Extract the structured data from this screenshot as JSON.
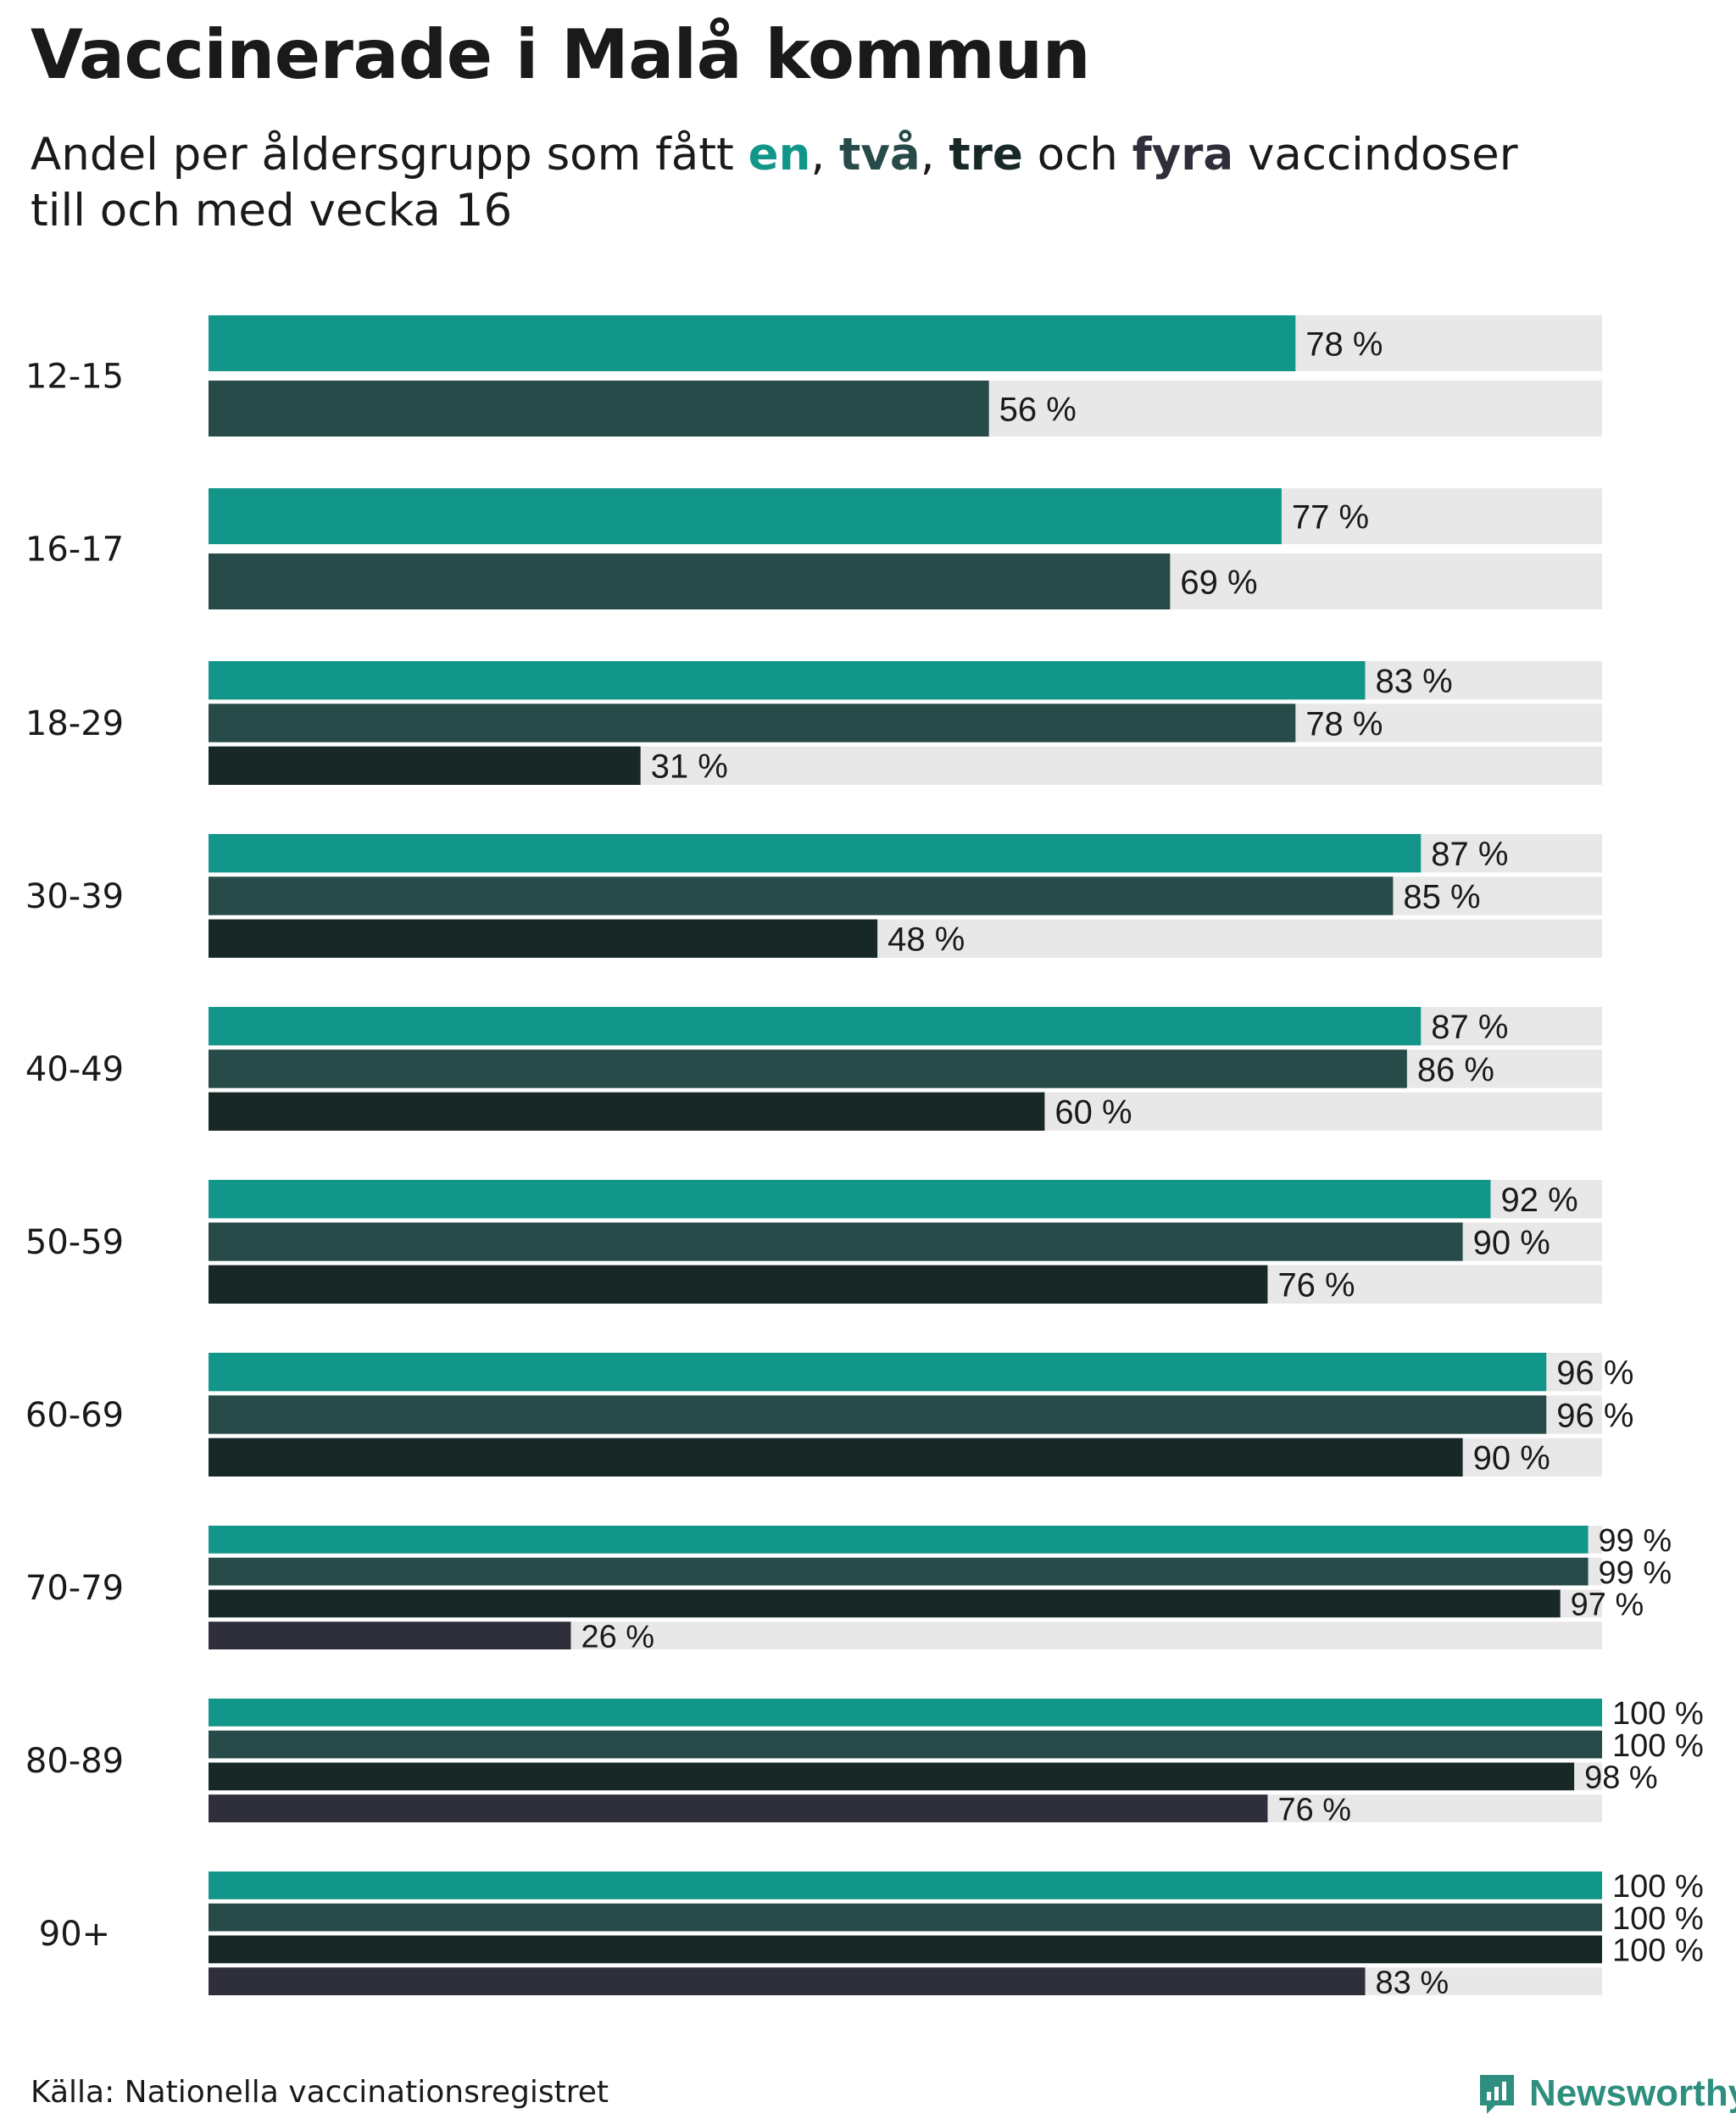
{
  "title": "Vaccinerade i Malå kommun",
  "subtitle": {
    "prefix": "Andel per åldersgrupp som fått ",
    "dose1": "en",
    "sep1": ", ",
    "dose2": "två",
    "sep2": ", ",
    "dose3": "tre",
    "and": " och ",
    "dose4": "fyra",
    "suffix": " vaccindoser",
    "line2": "till och med vecka 16"
  },
  "colors": {
    "dose1": "#13968a",
    "dose2": "#264b48",
    "dose3": "#172827",
    "dose4": "#2f2f3c",
    "track": "#e8e8e8"
  },
  "chart_data": {
    "type": "bar",
    "orientation": "horizontal",
    "title": "Vaccinerade i Malå kommun",
    "xlim": [
      0,
      100
    ],
    "unit": " %",
    "categories": [
      "12-15",
      "16-17",
      "18-29",
      "30-39",
      "40-49",
      "50-59",
      "60-69",
      "70-79",
      "80-89",
      "90+"
    ],
    "series": [
      {
        "name": "en",
        "values": [
          78,
          77,
          83,
          87,
          87,
          92,
          96,
          99,
          100,
          100
        ]
      },
      {
        "name": "två",
        "values": [
          56,
          69,
          78,
          85,
          86,
          90,
          96,
          99,
          100,
          100
        ]
      },
      {
        "name": "tre",
        "values": [
          null,
          null,
          31,
          48,
          60,
          76,
          90,
          97,
          98,
          100
        ]
      },
      {
        "name": "fyra",
        "values": [
          null,
          null,
          null,
          null,
          null,
          null,
          null,
          26,
          76,
          83
        ]
      }
    ]
  },
  "footer": {
    "source": "Källa: Nationella vaccinationsregistret",
    "logo": "Newsworthy"
  }
}
